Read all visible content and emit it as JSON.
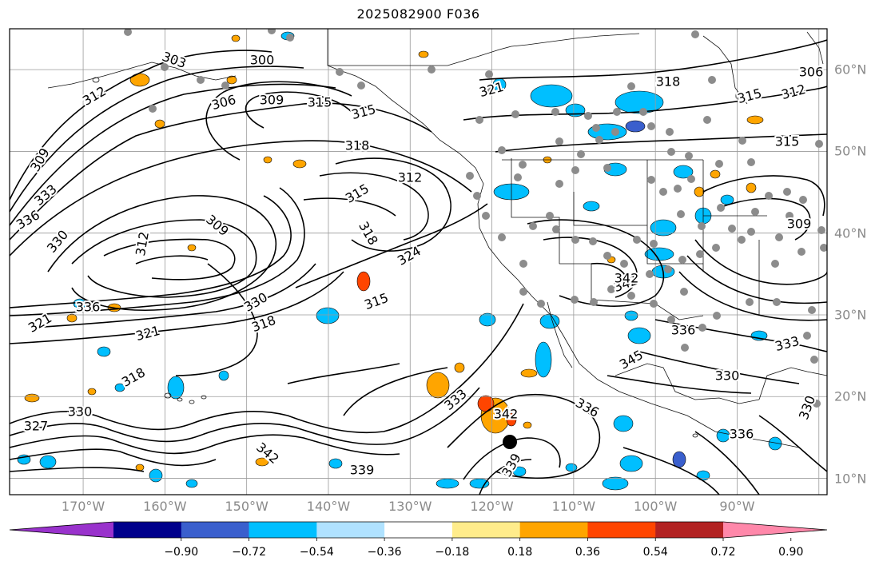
{
  "title": "2025082900 F036",
  "map": {
    "projection": "plate-carree",
    "extent": {
      "lon_min": -179,
      "lon_max": -79,
      "lat_min": 8,
      "lat_max": 65
    },
    "gridlines": true,
    "lon_labels": [
      "170°W",
      "160°W",
      "150°W",
      "140°W",
      "130°W",
      "120°W",
      "110°W",
      "100°W",
      "90°W"
    ],
    "lat_labels": [
      "60°N",
      "50°N",
      "40°N",
      "30°N",
      "20°N",
      "10°N"
    ],
    "contour_labels": [
      {
        "text": "303"
      },
      {
        "text": "300"
      },
      {
        "text": "312"
      },
      {
        "text": "306"
      },
      {
        "text": "309"
      },
      {
        "text": "315"
      },
      {
        "text": "315"
      },
      {
        "text": "318"
      },
      {
        "text": "309"
      },
      {
        "text": "333"
      },
      {
        "text": "336"
      },
      {
        "text": "330"
      },
      {
        "text": "312"
      },
      {
        "text": "309"
      },
      {
        "text": "315"
      },
      {
        "text": "312"
      },
      {
        "text": "318"
      },
      {
        "text": "324"
      },
      {
        "text": "315"
      },
      {
        "text": "330"
      },
      {
        "text": "318"
      },
      {
        "text": "321"
      },
      {
        "text": "336"
      },
      {
        "text": "321"
      },
      {
        "text": "330"
      },
      {
        "text": "327"
      },
      {
        "text": "318"
      },
      {
        "text": "339"
      },
      {
        "text": "342"
      },
      {
        "text": "333"
      },
      {
        "text": "342"
      },
      {
        "text": "336"
      },
      {
        "text": "339"
      },
      {
        "text": "318"
      },
      {
        "text": "321"
      },
      {
        "text": "315"
      },
      {
        "text": "312"
      },
      {
        "text": "315"
      },
      {
        "text": "342"
      },
      {
        "text": "336"
      },
      {
        "text": "333"
      },
      {
        "text": "330"
      },
      {
        "text": "330"
      },
      {
        "text": "336"
      },
      {
        "text": "309"
      },
      {
        "text": "306"
      },
      {
        "text": "342"
      },
      {
        "text": "345"
      }
    ],
    "marker": {
      "symbol": "filled-circle",
      "color": "#000000"
    }
  },
  "colorbar": {
    "ticks": [
      "−0.90",
      "−0.72",
      "−0.54",
      "−0.36",
      "−0.18",
      "0.18",
      "0.36",
      "0.54",
      "0.72",
      "0.90"
    ],
    "colors": [
      "#9932cc",
      "#00008b",
      "#3a5fcd",
      "#00bfff",
      "#b0e2ff",
      "#ffffff",
      "#ffec8b",
      "#ffa500",
      "#ff4500",
      "#b22222",
      "#ff88aa"
    ]
  }
}
